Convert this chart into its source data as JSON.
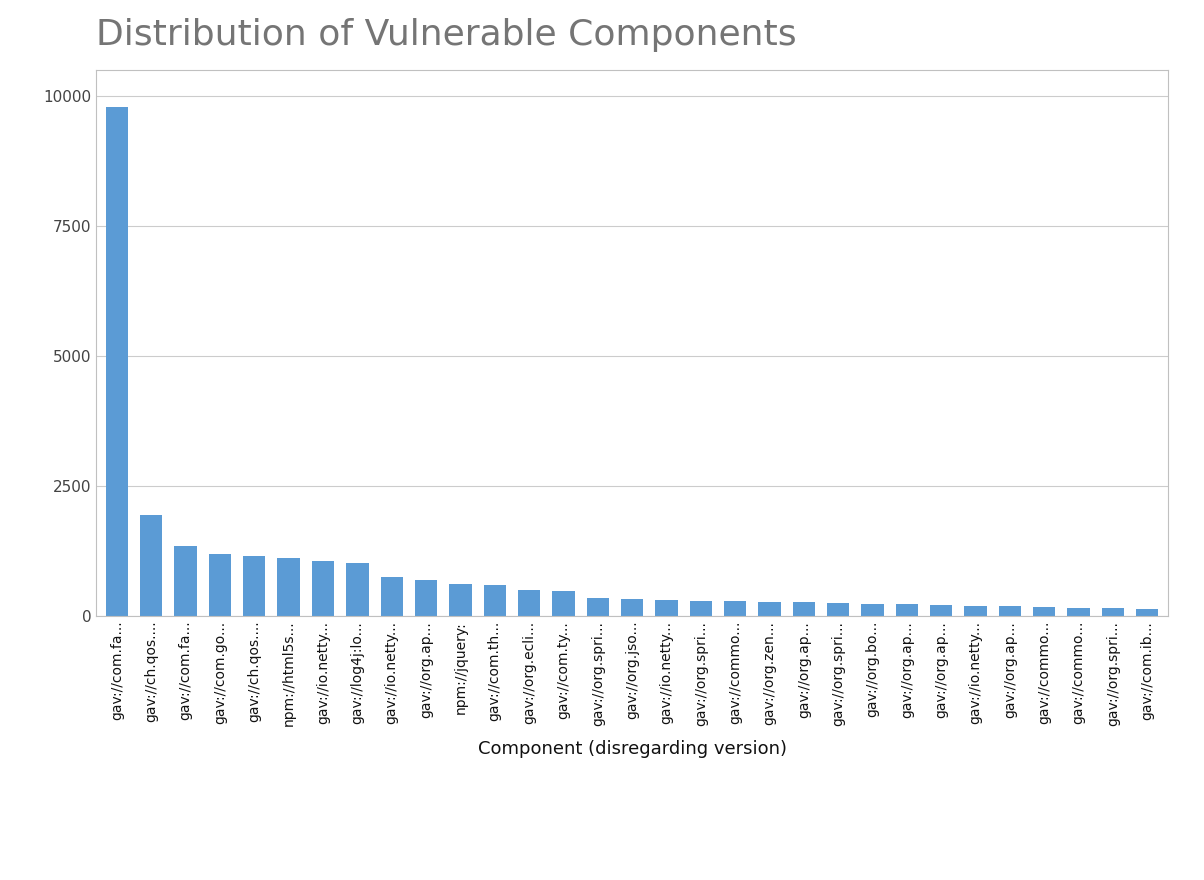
{
  "title": "Distribution of Vulnerable Components",
  "xlabel": "Component (disregarding version)",
  "ylabel": "",
  "bar_color": "#5b9bd5",
  "background_color": "#ffffff",
  "categories": [
    "gav://com.fa...",
    "gav://ch.qos....",
    "gav://com.fa...",
    "gav://com.go...",
    "gav://ch.qos....",
    "npm://html5s...",
    "gav://io.netty...",
    "gav://log4j:lo...",
    "gav://io.netty...",
    "gav://org.ap...",
    "npm://jquery:",
    "gav://com.th...",
    "gav://org.ecli...",
    "gav://com.ty...",
    "gav://org.spri...",
    "gav://org.jso...",
    "gav://io.netty...",
    "gav://org.spri...",
    "gav://commo...",
    "gav://org.zen...",
    "gav://org.ap...",
    "gav://org.spri...",
    "gav://org.bo...",
    "gav://org.ap...",
    "gav://org.ap...",
    "gav://io.netty...",
    "gav://org.ap...",
    "gav://commo...",
    "gav://commo...",
    "gav://org.spri...",
    "gav://com.ib..."
  ],
  "values": [
    9800,
    1950,
    1350,
    1200,
    1150,
    1120,
    1050,
    1020,
    750,
    700,
    620,
    590,
    500,
    480,
    340,
    320,
    300,
    295,
    280,
    270,
    260,
    250,
    240,
    230,
    220,
    200,
    190,
    175,
    160,
    145,
    130
  ],
  "ylim": [
    0,
    10500
  ],
  "yticks": [
    0,
    2500,
    5000,
    7500,
    10000
  ],
  "title_fontsize": 26,
  "label_fontsize": 13,
  "tick_fontsize": 11,
  "title_color": "#757575",
  "grid_color": "#cccccc",
  "border_color": "#c0c0c0"
}
